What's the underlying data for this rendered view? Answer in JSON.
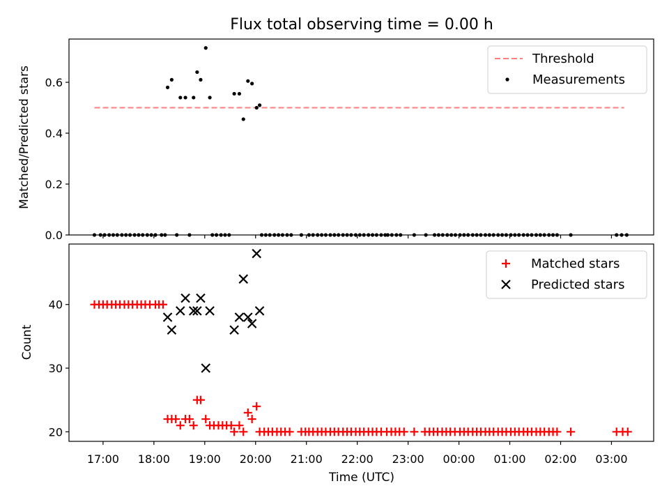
{
  "chart_data": {
    "title": "Flux total observing time = 0.00 h",
    "xlabel": "Time (UTC)",
    "x_ticks": [
      "17:00",
      "18:00",
      "19:00",
      "20:00",
      "21:00",
      "22:00",
      "23:00",
      "00:00",
      "01:00",
      "02:00",
      "03:00"
    ],
    "x_tick_hours": [
      17,
      18,
      19,
      20,
      21,
      22,
      23,
      24,
      25,
      26,
      27
    ],
    "xlim": [
      16.33,
      27.83
    ],
    "panels": [
      {
        "type": "scatter",
        "ylabel": "Matched/Predicted stars",
        "ylim": [
          0,
          0.77
        ],
        "y_ticks": [
          0.0,
          0.2,
          0.4,
          0.6
        ],
        "y_tick_labels": [
          "0.0",
          "0.2",
          "0.4",
          "0.6"
        ],
        "legend_position": "top-right",
        "threshold": {
          "name": "Threshold",
          "value": 0.5,
          "x_range": [
            16.83,
            27.25
          ],
          "color": "#ff7f7f"
        },
        "series": [
          {
            "name": "Measurements",
            "marker": "dot",
            "color": "#000000",
            "points": [
              [
                18.27,
                0.58
              ],
              [
                18.35,
                0.61
              ],
              [
                18.52,
                0.54
              ],
              [
                18.62,
                0.54
              ],
              [
                18.78,
                0.54
              ],
              [
                18.85,
                0.64
              ],
              [
                18.92,
                0.61
              ],
              [
                19.02,
                0.735
              ],
              [
                19.1,
                0.54
              ],
              [
                19.58,
                0.555
              ],
              [
                19.68,
                0.555
              ],
              [
                19.76,
                0.455
              ],
              [
                19.85,
                0.605
              ],
              [
                19.93,
                0.595
              ],
              [
                20.02,
                0.5
              ],
              [
                20.08,
                0.51
              ],
              [
                16.83,
                0
              ],
              [
                16.95,
                0
              ],
              [
                17.03,
                0
              ],
              [
                17.12,
                0
              ],
              [
                17.2,
                0
              ],
              [
                17.28,
                0
              ],
              [
                17.37,
                0
              ],
              [
                17.45,
                0
              ],
              [
                17.53,
                0
              ],
              [
                17.62,
                0
              ],
              [
                17.7,
                0
              ],
              [
                17.78,
                0
              ],
              [
                17.87,
                0
              ],
              [
                17.95,
                0
              ],
              [
                18.03,
                0
              ],
              [
                18.15,
                0
              ],
              [
                18.22,
                0
              ],
              [
                18.45,
                0
              ],
              [
                18.7,
                0
              ],
              [
                19.15,
                0
              ],
              [
                19.23,
                0
              ],
              [
                19.32,
                0
              ],
              [
                19.4,
                0
              ],
              [
                19.48,
                0
              ],
              [
                20.12,
                0
              ],
              [
                20.2,
                0
              ],
              [
                20.28,
                0
              ],
              [
                20.37,
                0
              ],
              [
                20.45,
                0
              ],
              [
                20.53,
                0
              ],
              [
                20.62,
                0
              ],
              [
                20.7,
                0
              ],
              [
                20.9,
                0
              ],
              [
                21.05,
                0
              ],
              [
                21.13,
                0
              ],
              [
                21.22,
                0
              ],
              [
                21.3,
                0
              ],
              [
                21.38,
                0
              ],
              [
                21.47,
                0
              ],
              [
                21.55,
                0
              ],
              [
                21.63,
                0
              ],
              [
                21.72,
                0
              ],
              [
                21.8,
                0
              ],
              [
                21.88,
                0
              ],
              [
                21.97,
                0
              ],
              [
                22.05,
                0
              ],
              [
                22.13,
                0
              ],
              [
                22.22,
                0
              ],
              [
                22.3,
                0
              ],
              [
                22.38,
                0
              ],
              [
                22.47,
                0
              ],
              [
                22.55,
                0
              ],
              [
                22.6,
                0
              ],
              [
                22.68,
                0
              ],
              [
                22.77,
                0
              ],
              [
                22.85,
                0
              ],
              [
                23.12,
                0
              ],
              [
                23.35,
                0
              ],
              [
                23.52,
                0
              ],
              [
                23.6,
                0
              ],
              [
                23.68,
                0
              ],
              [
                23.77,
                0
              ],
              [
                23.85,
                0
              ],
              [
                23.93,
                0
              ],
              [
                24.02,
                0
              ],
              [
                24.1,
                0
              ],
              [
                24.18,
                0
              ],
              [
                24.27,
                0
              ],
              [
                24.35,
                0
              ],
              [
                24.43,
                0
              ],
              [
                24.52,
                0
              ],
              [
                24.6,
                0
              ],
              [
                24.68,
                0
              ],
              [
                24.77,
                0
              ],
              [
                24.85,
                0
              ],
              [
                24.93,
                0
              ],
              [
                25.02,
                0
              ],
              [
                25.1,
                0
              ],
              [
                25.18,
                0
              ],
              [
                25.27,
                0
              ],
              [
                25.35,
                0
              ],
              [
                25.43,
                0
              ],
              [
                25.52,
                0
              ],
              [
                25.6,
                0
              ],
              [
                25.68,
                0
              ],
              [
                25.77,
                0
              ],
              [
                25.85,
                0
              ],
              [
                25.93,
                0
              ],
              [
                26.2,
                0
              ],
              [
                27.1,
                0
              ],
              [
                27.2,
                0
              ],
              [
                27.3,
                0
              ]
            ]
          }
        ]
      },
      {
        "type": "scatter",
        "ylabel": "Count",
        "ylim": [
          18.5,
          49.5
        ],
        "y_ticks": [
          20,
          30,
          40
        ],
        "y_tick_labels": [
          "20",
          "30",
          "40"
        ],
        "legend_position": "top-right",
        "series": [
          {
            "name": "Matched stars",
            "marker": "plus",
            "color": "#ff0000",
            "points": [
              [
                16.83,
                40
              ],
              [
                16.92,
                40
              ],
              [
                17.0,
                40
              ],
              [
                17.08,
                40
              ],
              [
                17.17,
                40
              ],
              [
                17.25,
                40
              ],
              [
                17.33,
                40
              ],
              [
                17.42,
                40
              ],
              [
                17.5,
                40
              ],
              [
                17.58,
                40
              ],
              [
                17.67,
                40
              ],
              [
                17.75,
                40
              ],
              [
                17.83,
                40
              ],
              [
                17.92,
                40
              ],
              [
                18.03,
                40
              ],
              [
                18.1,
                40
              ],
              [
                18.18,
                40
              ],
              [
                18.27,
                22
              ],
              [
                18.35,
                22
              ],
              [
                18.43,
                22
              ],
              [
                18.52,
                21
              ],
              [
                18.62,
                22
              ],
              [
                18.7,
                22
              ],
              [
                18.78,
                21
              ],
              [
                18.85,
                25
              ],
              [
                18.92,
                25
              ],
              [
                19.02,
                22
              ],
              [
                19.1,
                21
              ],
              [
                19.18,
                21
              ],
              [
                19.27,
                21
              ],
              [
                19.35,
                21
              ],
              [
                19.43,
                21
              ],
              [
                19.52,
                21
              ],
              [
                19.58,
                20
              ],
              [
                19.68,
                21
              ],
              [
                19.76,
                20
              ],
              [
                19.85,
                23
              ],
              [
                19.93,
                22
              ],
              [
                20.02,
                24
              ],
              [
                20.08,
                20
              ],
              [
                20.17,
                20
              ],
              [
                20.25,
                20
              ],
              [
                20.33,
                20
              ],
              [
                20.42,
                20
              ],
              [
                20.5,
                20
              ],
              [
                20.58,
                20
              ],
              [
                20.67,
                20
              ],
              [
                20.9,
                20
              ],
              [
                20.98,
                20
              ],
              [
                21.05,
                20
              ],
              [
                21.13,
                20
              ],
              [
                21.22,
                20
              ],
              [
                21.3,
                20
              ],
              [
                21.38,
                20
              ],
              [
                21.47,
                20
              ],
              [
                21.55,
                20
              ],
              [
                21.63,
                20
              ],
              [
                21.72,
                20
              ],
              [
                21.8,
                20
              ],
              [
                21.88,
                20
              ],
              [
                21.97,
                20
              ],
              [
                22.05,
                20
              ],
              [
                22.13,
                20
              ],
              [
                22.22,
                20
              ],
              [
                22.3,
                20
              ],
              [
                22.38,
                20
              ],
              [
                22.47,
                20
              ],
              [
                22.58,
                20
              ],
              [
                22.67,
                20
              ],
              [
                22.75,
                20
              ],
              [
                22.83,
                20
              ],
              [
                22.92,
                20
              ],
              [
                23.12,
                20
              ],
              [
                23.33,
                20
              ],
              [
                23.42,
                20
              ],
              [
                23.5,
                20
              ],
              [
                23.58,
                20
              ],
              [
                23.67,
                20
              ],
              [
                23.75,
                20
              ],
              [
                23.83,
                20
              ],
              [
                23.92,
                20
              ],
              [
                24.02,
                20
              ],
              [
                24.1,
                20
              ],
              [
                24.18,
                20
              ],
              [
                24.27,
                20
              ],
              [
                24.35,
                20
              ],
              [
                24.43,
                20
              ],
              [
                24.52,
                20
              ],
              [
                24.6,
                20
              ],
              [
                24.68,
                20
              ],
              [
                24.77,
                20
              ],
              [
                24.85,
                20
              ],
              [
                24.93,
                20
              ],
              [
                25.02,
                20
              ],
              [
                25.1,
                20
              ],
              [
                25.18,
                20
              ],
              [
                25.27,
                20
              ],
              [
                25.35,
                20
              ],
              [
                25.43,
                20
              ],
              [
                25.52,
                20
              ],
              [
                25.6,
                20
              ],
              [
                25.68,
                20
              ],
              [
                25.77,
                20
              ],
              [
                25.85,
                20
              ],
              [
                25.93,
                20
              ],
              [
                26.2,
                20
              ],
              [
                27.1,
                20
              ],
              [
                27.22,
                20
              ],
              [
                27.32,
                20
              ]
            ]
          },
          {
            "name": "Predicted stars",
            "marker": "x",
            "color": "#000000",
            "points": [
              [
                18.27,
                38
              ],
              [
                18.35,
                36
              ],
              [
                18.52,
                39
              ],
              [
                18.62,
                41
              ],
              [
                18.78,
                39
              ],
              [
                18.85,
                39
              ],
              [
                18.92,
                41
              ],
              [
                19.02,
                30
              ],
              [
                19.1,
                39
              ],
              [
                19.58,
                36
              ],
              [
                19.68,
                38
              ],
              [
                19.76,
                44
              ],
              [
                19.85,
                38
              ],
              [
                19.93,
                37
              ],
              [
                20.02,
                48
              ],
              [
                20.08,
                39
              ]
            ]
          }
        ]
      }
    ]
  }
}
